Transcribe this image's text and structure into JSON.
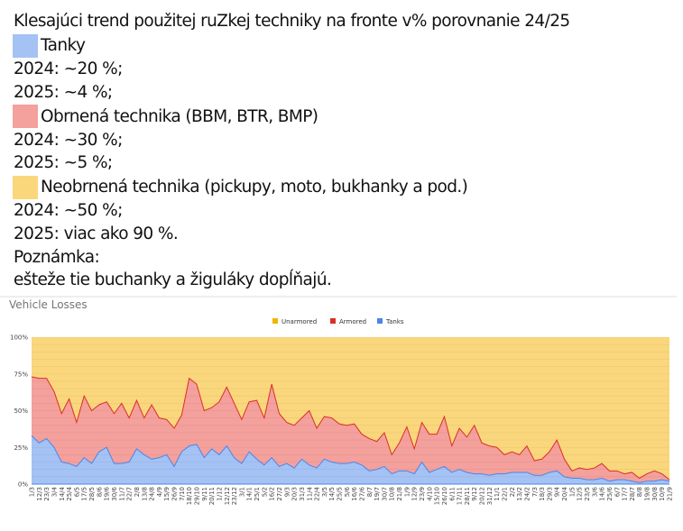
{
  "text": {
    "title": "Klesajúci trend použitej ruZkej techniky na fronte v% porovnanie 24/25",
    "tanks_label": "Tanky",
    "tanks_2024": "2024: ~20 %;",
    "tanks_2025": "2025: ~4 %;",
    "armored_label": "Obrnená technika (BBM, BTR, BMP)",
    "armored_2024": "2024: ~30 %;",
    "armored_2025": "2025: ~5 %;",
    "unarmored_label": "Neobrnená technika (pickupy, moto, bukhanky a pod.)",
    "unarmored_2024": "2024: ~50 %;",
    "unarmored_2025": "2025: viac ako 90 %.",
    "note_label": "Poznámka:",
    "note_text": "ešteže tie buchanky a žiguláky dopĺňajú."
  },
  "colors": {
    "tanks": "#a4c2f4",
    "armored": "#f4a09c",
    "unarmored": "#fad77c",
    "tanks_line": "#4a86e8",
    "armored_line": "#d93025",
    "unarmored_legend": "#f4b400"
  },
  "chart_data": {
    "type": "area",
    "stacked": true,
    "title": "Vehicle Losses",
    "legend_position": "top",
    "grid": true,
    "ylim": [
      0,
      100
    ],
    "yticks": [
      "0%",
      "25%",
      "50%",
      "75%",
      "100%"
    ],
    "categories": [
      "1/3",
      "12/3",
      "23/3",
      "3/4",
      "14/4",
      "25/4",
      "6/5",
      "17/5",
      "28/5",
      "8/6",
      "19/6",
      "30/6",
      "11/7",
      "22/7",
      "2/8",
      "13/8",
      "24/8",
      "4/9",
      "15/9",
      "26/9",
      "7/10",
      "18/10",
      "29/10",
      "9/11",
      "20/11",
      "1/12",
      "12/12",
      "23/12",
      "3/1",
      "14/1",
      "25/1",
      "5/2",
      "16/2",
      "27/2",
      "9/3",
      "20/3",
      "31/3",
      "11/4",
      "22/4",
      "3/5",
      "14/5",
      "25/5",
      "5/6",
      "16/6",
      "27/6",
      "8/7",
      "19/7",
      "30/7",
      "10/8",
      "21/8",
      "1/9",
      "12/9",
      "23/9",
      "4/10",
      "15/10",
      "26/10",
      "6/11",
      "17/11",
      "28/11",
      "9/12",
      "20/12",
      "31/12",
      "11/1",
      "22/1",
      "2/2",
      "13/2",
      "24/2",
      "7/3",
      "18/3",
      "29/3",
      "9/4",
      "20/4",
      "1/5",
      "12/5",
      "23/5",
      "3/6",
      "14/6",
      "25/6",
      "6/7",
      "17/7",
      "28/7",
      "8/8",
      "19/8",
      "30/8",
      "10/9",
      "21/9"
    ],
    "series": [
      {
        "name": "Tanks",
        "values": [
          33,
          28,
          31,
          25,
          15,
          14,
          12,
          18,
          14,
          22,
          25,
          14,
          14,
          15,
          24,
          20,
          17,
          18,
          20,
          12,
          22,
          26,
          27,
          18,
          24,
          20,
          26,
          18,
          14,
          22,
          17,
          13,
          18,
          12,
          14,
          11,
          17,
          13,
          11,
          17,
          15,
          14,
          14,
          15,
          13,
          9,
          10,
          12,
          7,
          9,
          9,
          7,
          15,
          8,
          10,
          12,
          8,
          10,
          8,
          7,
          7,
          6,
          7,
          7,
          8,
          8,
          8,
          6,
          6,
          8,
          9,
          5,
          4,
          4,
          3,
          3,
          4,
          2,
          3,
          3,
          2,
          1,
          2,
          2,
          3,
          2
        ]
      },
      {
        "name": "Armored",
        "values": [
          40,
          44,
          41,
          38,
          33,
          44,
          30,
          42,
          36,
          32,
          31,
          34,
          41,
          30,
          33,
          25,
          37,
          27,
          24,
          26,
          25,
          46,
          41,
          32,
          28,
          36,
          40,
          37,
          30,
          34,
          40,
          32,
          50,
          36,
          28,
          29,
          28,
          37,
          27,
          29,
          30,
          27,
          26,
          26,
          21,
          22,
          19,
          23,
          13,
          19,
          30,
          17,
          27,
          26,
          24,
          34,
          18,
          28,
          24,
          33,
          21,
          20,
          18,
          13,
          14,
          12,
          18,
          10,
          11,
          14,
          21,
          12,
          5,
          7,
          7,
          8,
          10,
          7,
          6,
          4,
          6,
          3,
          5,
          7,
          4,
          1
        ]
      },
      {
        "name": "Unarmored",
        "values": [
          27,
          28,
          28,
          37,
          52,
          42,
          58,
          40,
          50,
          46,
          44,
          52,
          45,
          55,
          43,
          55,
          46,
          55,
          56,
          62,
          53,
          28,
          32,
          50,
          48,
          44,
          34,
          45,
          56,
          44,
          43,
          55,
          32,
          52,
          58,
          60,
          55,
          50,
          62,
          54,
          55,
          59,
          60,
          59,
          66,
          69,
          71,
          65,
          80,
          72,
          61,
          76,
          58,
          66,
          66,
          54,
          74,
          62,
          68,
          60,
          72,
          74,
          75,
          80,
          78,
          80,
          74,
          84,
          83,
          78,
          70,
          83,
          91,
          89,
          90,
          89,
          86,
          91,
          91,
          93,
          92,
          96,
          93,
          91,
          93,
          97
        ]
      }
    ]
  }
}
